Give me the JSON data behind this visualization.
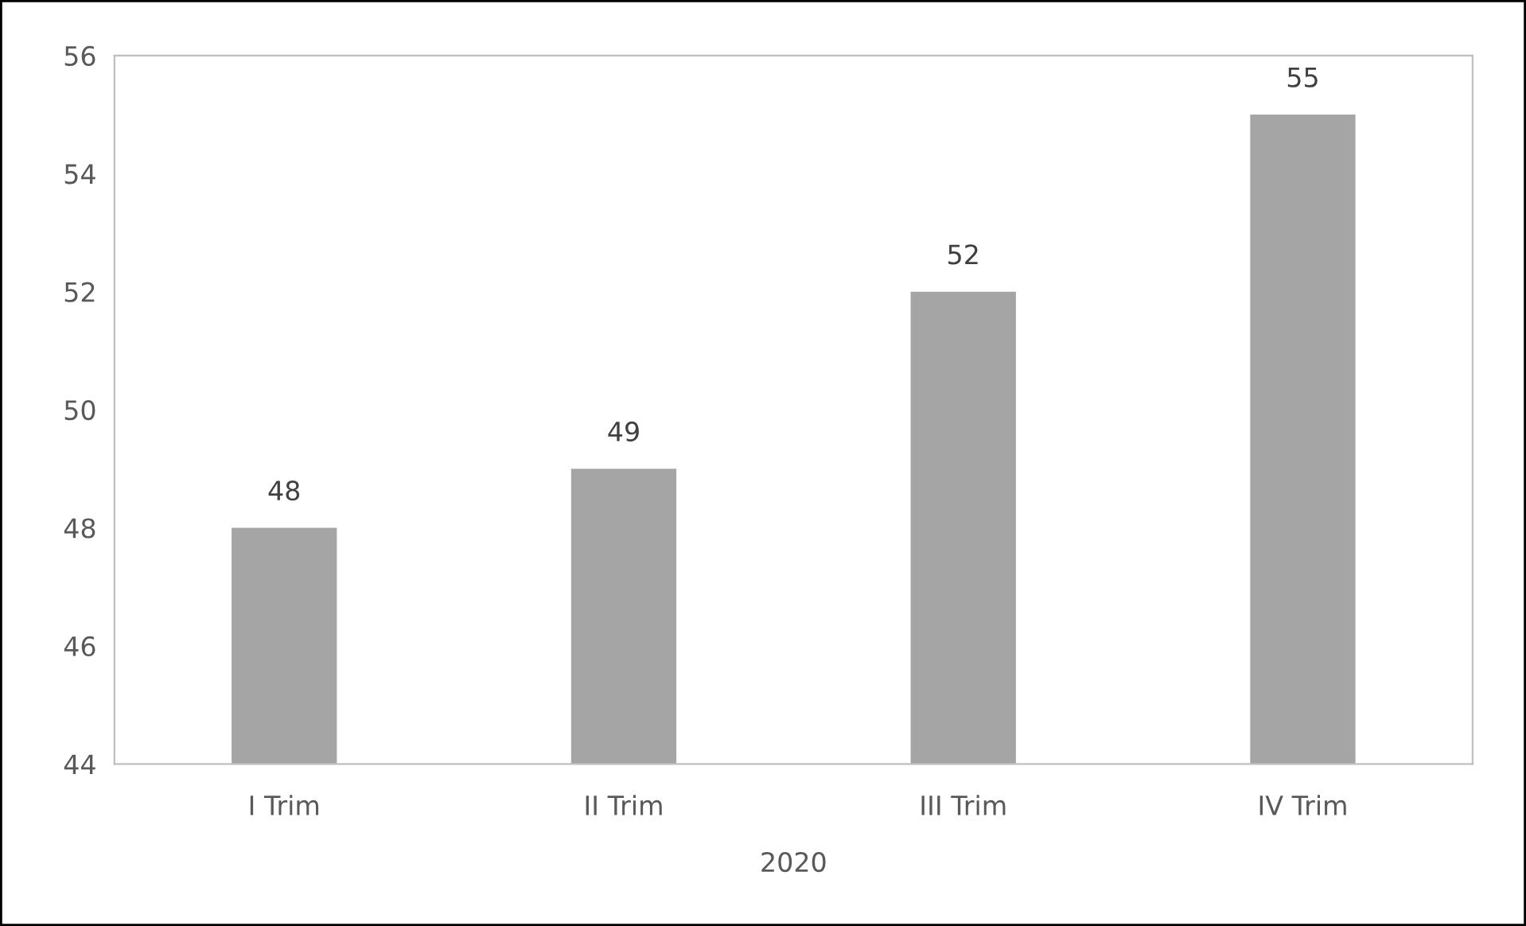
{
  "chart_data": {
    "type": "bar",
    "xlabel": "2020",
    "categories": [
      "I Trim",
      "II Trim",
      "III Trim",
      "IV Trim"
    ],
    "values": [
      48,
      49,
      52,
      55
    ],
    "color": "#a5a5a5",
    "ylim": [
      44,
      56
    ],
    "yticks": [
      44,
      46,
      48,
      50,
      52,
      54,
      56
    ],
    "data_labels": true,
    "grid": false,
    "legend": false
  }
}
